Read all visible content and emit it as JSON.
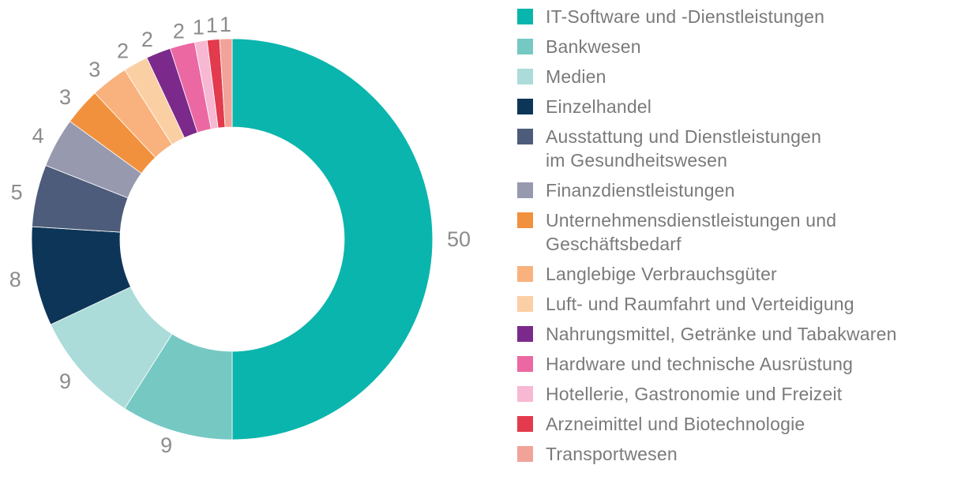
{
  "chart_data": {
    "type": "pie",
    "style": "donut",
    "title": "",
    "legend_position": "right",
    "categories": [
      "IT-Software und -Dienstleistungen",
      "Bankwesen",
      "Medien",
      "Einzelhandel",
      "Ausstattung und Dienstleistungen\nim Gesundheitswesen",
      "Finanzdienstleistungen",
      "Unternehmensdienstleistungen und\nGeschäftsbedarf",
      "Langlebige Verbrauchsgüter",
      "Luft- und Raumfahrt und Verteidigung",
      "Nahrungsmittel, Getränke und Tabakwaren",
      "Hardware und technische Ausrüstung",
      "Hotellerie, Gastronomie und Freizeit",
      "Arzneimittel und Biotechnologie",
      "Transportwesen"
    ],
    "values": [
      50,
      9,
      9,
      8,
      5,
      4,
      3,
      3,
      2,
      2,
      2,
      1,
      1,
      1
    ],
    "colors": [
      "#0ab5ad",
      "#76c8c3",
      "#abdcd9",
      "#0d3558",
      "#4d5c7a",
      "#979aae",
      "#f2913d",
      "#f9b27d",
      "#fbcfa4",
      "#7b2a8c",
      "#ec68a3",
      "#f7b8d3",
      "#e33a4e",
      "#f1a399"
    ]
  }
}
